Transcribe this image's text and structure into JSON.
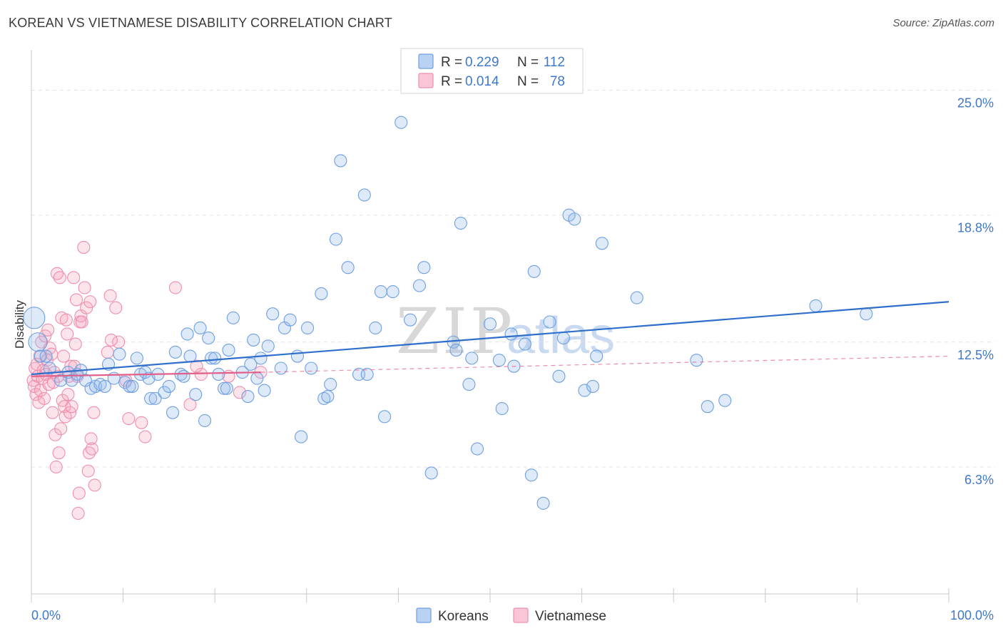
{
  "title": "KOREAN VS VIETNAMESE DISABILITY CORRELATION CHART",
  "source": "Source: ZipAtlas.com",
  "watermark": {
    "zip": "ZIP",
    "atlas": "atlas"
  },
  "colors": {
    "koreans": "#6f9fe0",
    "koreans_fill": "rgba(150,185,235,0.30)",
    "koreans_line": "#2f6fcc",
    "vietnamese": "#ee8fae",
    "vietnamese_fill": "rgba(245,165,190,0.30)",
    "vietnamese_line": "#e0608a",
    "tick": "#3f78c8",
    "grid": "#e3e3e3"
  },
  "legend_box": {
    "rows": [
      {
        "series": "koreans",
        "r_label": "R = ",
        "r_value": "0.229",
        "n_label": "N = ",
        "n_value": "112"
      },
      {
        "series": "vietnamese",
        "r_label": "R = ",
        "r_value": "0.014",
        "n_label": "N = ",
        "n_value": "78"
      }
    ]
  },
  "chart_data": {
    "type": "scatter",
    "title": "KOREAN VS VIETNAMESE DISABILITY CORRELATION CHART",
    "xlabel": "",
    "ylabel": "Disability",
    "xlim": [
      0,
      100
    ],
    "ylim": [
      0,
      27
    ],
    "x_tick_labels": {
      "left": "0.0%",
      "right": "100.0%"
    },
    "y_ticks": [
      {
        "value": 6.3,
        "label": "6.3%"
      },
      {
        "value": 12.5,
        "label": "12.5%"
      },
      {
        "value": 18.8,
        "label": "18.8%"
      },
      {
        "value": 25.0,
        "label": "25.0%"
      }
    ],
    "grid": "horizontal dashed",
    "legend": "bottom-center",
    "series": [
      {
        "name": "Koreans",
        "key": "koreans",
        "trend": {
          "x": [
            0,
            100
          ],
          "y": [
            10.9,
            14.5
          ]
        },
        "points": [
          [
            0.3,
            13.7
          ],
          [
            0.7,
            12.5
          ],
          [
            1.0,
            11.8
          ],
          [
            1.6,
            11.8
          ],
          [
            2.0,
            11.2
          ],
          [
            3.2,
            10.6
          ],
          [
            4.0,
            11.0
          ],
          [
            4.4,
            10.6
          ],
          [
            5.0,
            10.9
          ],
          [
            5.4,
            11.1
          ],
          [
            5.9,
            10.6
          ],
          [
            6.5,
            10.2
          ],
          [
            7.0,
            10.3
          ],
          [
            7.5,
            10.4
          ],
          [
            8.0,
            10.3
          ],
          [
            8.4,
            11.4
          ],
          [
            9.0,
            10.7
          ],
          [
            9.6,
            11.9
          ],
          [
            10.2,
            10.5
          ],
          [
            10.7,
            10.3
          ],
          [
            11.0,
            10.3
          ],
          [
            11.5,
            11.7
          ],
          [
            11.9,
            10.9
          ],
          [
            12.4,
            11.0
          ],
          [
            12.8,
            10.7
          ],
          [
            13.0,
            9.7
          ],
          [
            13.5,
            9.7
          ],
          [
            13.8,
            10.9
          ],
          [
            14.5,
            10.0
          ],
          [
            15.0,
            10.3
          ],
          [
            15.4,
            9.0
          ],
          [
            15.7,
            12.0
          ],
          [
            16.3,
            10.9
          ],
          [
            16.6,
            10.8
          ],
          [
            17.0,
            12.9
          ],
          [
            17.3,
            11.8
          ],
          [
            17.9,
            9.9
          ],
          [
            18.4,
            13.2
          ],
          [
            18.9,
            8.6
          ],
          [
            19.3,
            12.7
          ],
          [
            19.6,
            11.7
          ],
          [
            20.0,
            11.7
          ],
          [
            20.4,
            10.9
          ],
          [
            21.0,
            10.2
          ],
          [
            21.3,
            10.2
          ],
          [
            21.5,
            12.1
          ],
          [
            22.0,
            13.7
          ],
          [
            23.0,
            11.0
          ],
          [
            23.6,
            9.8
          ],
          [
            23.9,
            11.4
          ],
          [
            24.2,
            12.6
          ],
          [
            24.6,
            10.7
          ],
          [
            25.0,
            11.7
          ],
          [
            25.4,
            10.1
          ],
          [
            25.8,
            12.3
          ],
          [
            26.3,
            13.9
          ],
          [
            27.2,
            11.2
          ],
          [
            27.6,
            13.2
          ],
          [
            28.2,
            13.6
          ],
          [
            29.0,
            11.8
          ],
          [
            30.1,
            13.2
          ],
          [
            30.5,
            11.2
          ],
          [
            29.4,
            7.8
          ],
          [
            31.6,
            14.9
          ],
          [
            31.9,
            9.7
          ],
          [
            32.3,
            9.8
          ],
          [
            32.6,
            10.4
          ],
          [
            33.2,
            17.6
          ],
          [
            33.7,
            21.5
          ],
          [
            34.5,
            16.2
          ],
          [
            35.7,
            10.9
          ],
          [
            36.6,
            10.9
          ],
          [
            36.3,
            19.8
          ],
          [
            37.5,
            13.2
          ],
          [
            38.1,
            15.0
          ],
          [
            38.5,
            8.8
          ],
          [
            39.4,
            15.0
          ],
          [
            40.3,
            23.4
          ],
          [
            41.3,
            13.6
          ],
          [
            42.3,
            15.3
          ],
          [
            42.8,
            16.2
          ],
          [
            43.6,
            6.0
          ],
          [
            46.0,
            12.5
          ],
          [
            46.3,
            12.1
          ],
          [
            46.8,
            18.4
          ],
          [
            47.7,
            10.4
          ],
          [
            48.0,
            11.7
          ],
          [
            48.6,
            7.2
          ],
          [
            50.0,
            13.4
          ],
          [
            51.0,
            11.6
          ],
          [
            51.3,
            9.2
          ],
          [
            52.3,
            12.9
          ],
          [
            52.6,
            11.3
          ],
          [
            53.8,
            12.4
          ],
          [
            54.5,
            5.9
          ],
          [
            54.8,
            16.0
          ],
          [
            55.8,
            4.5
          ],
          [
            56.5,
            13.5
          ],
          [
            57.5,
            10.8
          ],
          [
            58.0,
            12.7
          ],
          [
            58.6,
            18.8
          ],
          [
            59.2,
            18.6
          ],
          [
            60.3,
            10.1
          ],
          [
            61.2,
            10.3
          ],
          [
            61.6,
            11.8
          ],
          [
            62.2,
            17.4
          ],
          [
            66.0,
            14.7
          ],
          [
            72.5,
            11.6
          ],
          [
            73.7,
            9.3
          ],
          [
            75.6,
            9.6
          ],
          [
            85.5,
            14.3
          ],
          [
            91.0,
            13.9
          ]
        ]
      },
      {
        "name": "Vietnamese",
        "key": "vietnamese",
        "trend": {
          "x": [
            0,
            25
          ],
          "y": [
            10.8,
            11.0
          ],
          "dashed_to": {
            "x": 100,
            "y": 11.8
          }
        },
        "points": [
          [
            0.2,
            10.6
          ],
          [
            0.3,
            10.3
          ],
          [
            0.4,
            11.2
          ],
          [
            0.5,
            9.9
          ],
          [
            0.6,
            11.4
          ],
          [
            0.7,
            10.8
          ],
          [
            0.8,
            9.5
          ],
          [
            0.9,
            11.8
          ],
          [
            1.0,
            10.1
          ],
          [
            1.1,
            12.5
          ],
          [
            1.2,
            10.7
          ],
          [
            1.3,
            11.1
          ],
          [
            1.4,
            9.7
          ],
          [
            1.5,
            12.8
          ],
          [
            1.6,
            10.9
          ],
          [
            1.7,
            11.6
          ],
          [
            1.8,
            13.1
          ],
          [
            1.9,
            10.4
          ],
          [
            2.0,
            12.2
          ],
          [
            2.2,
            11.9
          ],
          [
            2.3,
            9.0
          ],
          [
            2.4,
            10.5
          ],
          [
            2.5,
            11.0
          ],
          [
            2.6,
            7.9
          ],
          [
            2.7,
            6.3
          ],
          [
            2.8,
            15.9
          ],
          [
            2.9,
            10.8
          ],
          [
            3.0,
            7.0
          ],
          [
            3.1,
            15.7
          ],
          [
            3.2,
            8.2
          ],
          [
            3.3,
            13.7
          ],
          [
            3.4,
            9.6
          ],
          [
            3.5,
            11.8
          ],
          [
            3.6,
            9.3
          ],
          [
            3.7,
            8.8
          ],
          [
            3.8,
            13.6
          ],
          [
            3.9,
            12.9
          ],
          [
            4.0,
            9.9
          ],
          [
            4.1,
            10.8
          ],
          [
            4.2,
            9.0
          ],
          [
            4.3,
            11.3
          ],
          [
            4.4,
            9.3
          ],
          [
            4.6,
            15.7
          ],
          [
            4.7,
            11.3
          ],
          [
            4.8,
            12.4
          ],
          [
            4.9,
            14.6
          ],
          [
            5.0,
            10.8
          ],
          [
            5.1,
            4.0
          ],
          [
            5.2,
            5.0
          ],
          [
            5.3,
            13.5
          ],
          [
            5.4,
            13.8
          ],
          [
            5.5,
            13.5
          ],
          [
            5.7,
            17.2
          ],
          [
            5.8,
            15.2
          ],
          [
            6.0,
            14.2
          ],
          [
            6.2,
            6.1
          ],
          [
            6.3,
            7.0
          ],
          [
            6.4,
            14.5
          ],
          [
            6.5,
            7.7
          ],
          [
            6.6,
            7.2
          ],
          [
            6.8,
            9.0
          ],
          [
            6.9,
            5.4
          ],
          [
            8.6,
            14.8
          ],
          [
            9.2,
            14.2
          ],
          [
            9.5,
            12.5
          ],
          [
            8.3,
            12.0
          ],
          [
            8.7,
            12.6
          ],
          [
            10.3,
            10.6
          ],
          [
            10.6,
            8.7
          ],
          [
            12.0,
            8.5
          ],
          [
            12.4,
            7.8
          ],
          [
            15.7,
            15.2
          ],
          [
            17.3,
            9.4
          ],
          [
            18.5,
            10.9
          ],
          [
            18.0,
            11.3
          ],
          [
            21.5,
            10.8
          ],
          [
            22.7,
            10.0
          ],
          [
            25.0,
            11.0
          ]
        ]
      }
    ]
  },
  "bottom_legend": {
    "items": [
      {
        "series": "koreans",
        "label": "Koreans"
      },
      {
        "series": "vietnamese",
        "label": "Vietnamese"
      }
    ]
  }
}
